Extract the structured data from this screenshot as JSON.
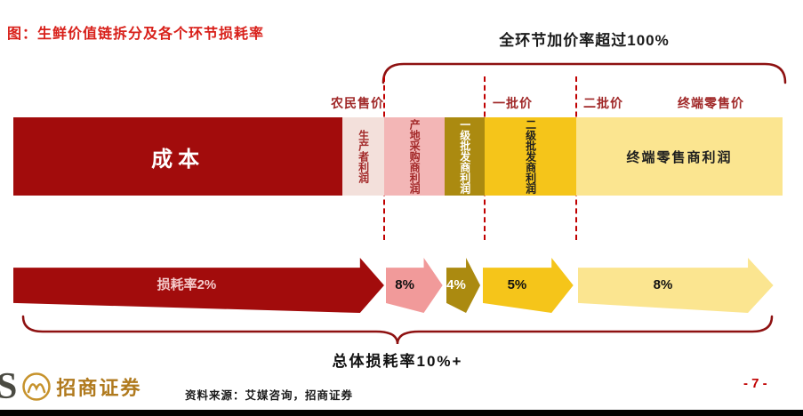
{
  "title": "图：生鲜价值链拆分及各个环节损耗率",
  "annotations": {
    "top": "全环节加价率超过100%",
    "bottom": "总体损耗率10%+"
  },
  "price_labels": [
    {
      "label": "农民售价"
    },
    {
      "label": "一批价"
    },
    {
      "label": "二批价"
    },
    {
      "label": "终端零售价"
    }
  ],
  "chart_data": {
    "type": "bar",
    "title": "生鲜价值链拆分及各个环节损耗率",
    "total_markup_note": "全环节加价率超过100%",
    "overall_loss_rate_note": "总体损耗率10%+",
    "segments": [
      {
        "label": "成本",
        "width_pct": 42.8,
        "color": "#A20C0C",
        "text_color": "#FFFFFF"
      },
      {
        "label": "生产者利润",
        "width_pct": 5.4,
        "color": "#F3E0DB",
        "text_color": "#A32A2A"
      },
      {
        "label": "产地采购商利润",
        "width_pct": 7.9,
        "color": "#F3B6B6",
        "text_color": "#A32A2A"
      },
      {
        "label": "一级批发商利润",
        "width_pct": 5.2,
        "color": "#AB8A10",
        "text_color": "#FFFFFF"
      },
      {
        "label": "二级批发商利润",
        "width_pct": 11.9,
        "color": "#F5C51A",
        "text_color": "#1F1F1F"
      },
      {
        "label": "终端零售商利润",
        "width_pct": 26.8,
        "color": "#FBE590",
        "text_color": "#1F1F1F"
      }
    ],
    "loss_arrows": [
      {
        "label": "损耗率2%",
        "value_pct": 2,
        "left_pct": 0,
        "width_pct": 48.2,
        "head_pct": 6.5,
        "color": "#A20C0C",
        "text_color": "#F5CBCB"
      },
      {
        "label": "8%",
        "value_pct": 8,
        "left_pct": 48.4,
        "width_pct": 7.4,
        "head_pct": 33,
        "color": "#F19A9A",
        "text_color": "#111111"
      },
      {
        "label": "4%",
        "value_pct": 4,
        "left_pct": 56.3,
        "width_pct": 4.4,
        "head_pct": 42,
        "color": "#AB8A10",
        "text_color": "#FFFFFF"
      },
      {
        "label": "5%",
        "value_pct": 5,
        "left_pct": 61.0,
        "width_pct": 11.8,
        "head_pct": 24,
        "color": "#F5C51A",
        "text_color": "#111111"
      },
      {
        "label": "8%",
        "value_pct": 8,
        "left_pct": 73.4,
        "width_pct": 25.4,
        "head_pct": 13,
        "color": "#FBE590",
        "text_color": "#111111"
      }
    ]
  },
  "footer": {
    "logo_letter": "S",
    "logo_text": "招商证券",
    "source": "资料来源：艾媒咨询，招商证券",
    "page": "- 7 -"
  },
  "colors": {
    "title_red": "#D8201A",
    "dashed_line": "#C00000",
    "brace": "#8E1111"
  }
}
